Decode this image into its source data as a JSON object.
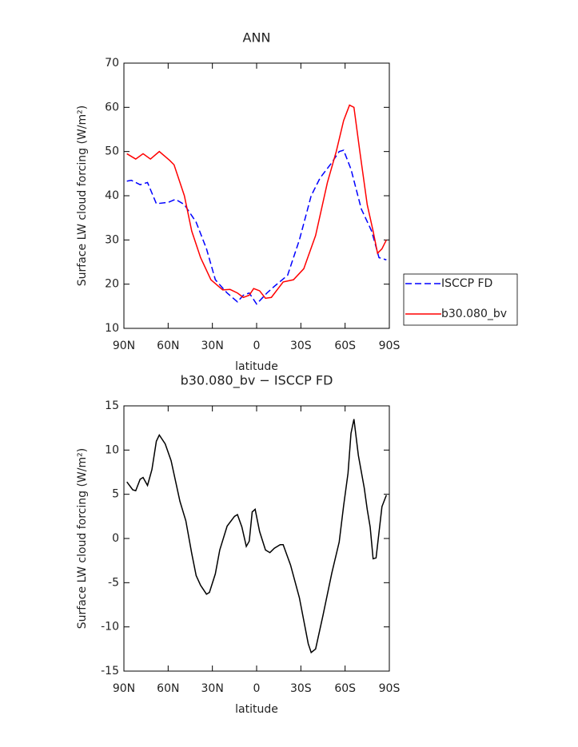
{
  "chart_data": [
    {
      "type": "line",
      "title": "ANN",
      "xlabel": "latitude",
      "ylabel": "Surface LW cloud forcing (W/m²)",
      "xlim": [
        90,
        -90
      ],
      "ylim": [
        10,
        70
      ],
      "xticks": [
        {
          "value": 90,
          "label": "90N"
        },
        {
          "value": 60,
          "label": "60N"
        },
        {
          "value": 30,
          "label": "30N"
        },
        0,
        {
          "value": -30,
          "label": "30S"
        },
        {
          "value": -60,
          "label": "60S"
        },
        {
          "value": -90,
          "label": "90S"
        }
      ],
      "yticks": [
        10,
        20,
        30,
        40,
        50,
        60,
        70
      ],
      "legend": "right",
      "series": [
        {
          "name": "ISCCP FD",
          "color": "#0000ff",
          "dashed": true,
          "x": [
            88,
            85,
            79,
            74,
            68,
            60,
            55,
            49,
            41,
            34,
            28,
            20,
            13,
            9,
            5,
            0,
            -7,
            -12,
            -21,
            -29,
            -37,
            -43,
            -51,
            -56,
            -59,
            -64,
            -71,
            -78,
            -83,
            -88
          ],
          "values": [
            43.3,
            43.5,
            42.5,
            43,
            38.2,
            38.5,
            39.2,
            38,
            34,
            28,
            21,
            18,
            16,
            17.5,
            18,
            15.5,
            18,
            19.5,
            22,
            30,
            40,
            44,
            47.5,
            50,
            50.3,
            46,
            37,
            32,
            26,
            25.5
          ]
        },
        {
          "name": "b30.080_bv",
          "color": "#ff0000",
          "dashed": false,
          "x": [
            88,
            82,
            77,
            72,
            66,
            59,
            56,
            49,
            44,
            38,
            31,
            23,
            18,
            13,
            9,
            5,
            2,
            -2,
            -6,
            -10,
            -18,
            -25,
            -32,
            -40,
            -48,
            -54,
            -59,
            -63,
            -66,
            -70,
            -75,
            -79,
            -82,
            -85,
            -88
          ],
          "values": [
            49.5,
            48.3,
            49.5,
            48.3,
            50,
            48,
            47,
            40,
            32,
            26,
            21,
            18.7,
            18.8,
            18,
            17,
            17.5,
            19,
            18.5,
            16.8,
            17,
            20.5,
            21,
            23.5,
            31,
            43,
            50,
            57,
            60.5,
            60,
            50,
            38,
            32,
            27,
            28,
            30
          ]
        }
      ]
    },
    {
      "type": "line",
      "title": "b30.080_bv − ISCCP FD",
      "xlabel": "latitude",
      "ylabel": "Surface LW cloud forcing (W/m²)",
      "xlim": [
        90,
        -90
      ],
      "ylim": [
        -15,
        15
      ],
      "xticks": [
        {
          "value": 90,
          "label": "90N"
        },
        {
          "value": 60,
          "label": "60N"
        },
        {
          "value": 30,
          "label": "30N"
        },
        0,
        {
          "value": -30,
          "label": "30S"
        },
        {
          "value": -60,
          "label": "60S"
        },
        {
          "value": -90,
          "label": "90S"
        }
      ],
      "yticks": [
        -15,
        -10,
        -5,
        0,
        5,
        10,
        15
      ],
      "color": "#000000",
      "x": [
        88,
        84,
        82,
        79,
        77,
        74,
        71,
        68,
        66,
        62,
        58,
        52,
        48,
        44,
        41,
        38,
        34,
        32,
        28,
        25,
        20,
        15,
        13,
        10,
        7,
        5,
        3,
        1,
        -2,
        -6,
        -9,
        -12,
        -16,
        -18,
        -23,
        -29,
        -35,
        -37,
        -40,
        -45,
        -51,
        -56,
        -59,
        -62,
        -64,
        -66,
        -69,
        -73,
        -75,
        -77,
        -79,
        -81,
        -85,
        -88
      ],
      "values": [
        6.4,
        5.5,
        5.4,
        6.7,
        6.9,
        6,
        7.8,
        11,
        11.7,
        10.7,
        8.8,
        4.2,
        2,
        -1.7,
        -4.2,
        -5.3,
        -6.3,
        -6.1,
        -4,
        -1.3,
        1.4,
        2.5,
        2.7,
        1.3,
        -0.9,
        -0.3,
        3,
        3.3,
        0.8,
        -1.3,
        -1.6,
        -1.1,
        -0.7,
        -0.7,
        -3,
        -6.7,
        -11.9,
        -12.9,
        -12.5,
        -8.7,
        -3.9,
        -0.4,
        3.7,
        7.4,
        11.9,
        13.5,
        9.4,
        5.7,
        3.3,
        1.3,
        -2.3,
        -2.2,
        3.6,
        4.9
      ]
    }
  ]
}
